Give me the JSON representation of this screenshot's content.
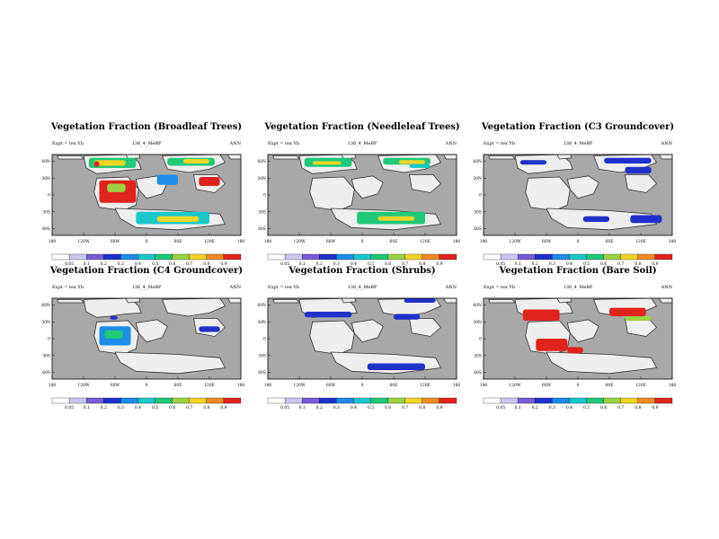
{
  "colors": {
    "ocean": "#a8a8a8",
    "land_empty": "#eeeeee",
    "coast": "#333333",
    "scale": [
      "#ffffff",
      "#c8c8f0",
      "#7a5cd6",
      "#2030c8",
      "#1e8ce8",
      "#19c8c8",
      "#20c878",
      "#9bd241",
      "#f0d428",
      "#f08a23",
      "#e1231e"
    ]
  },
  "chart_data": [
    {
      "type": "heatmap",
      "title": "Vegetation Fraction (Broadleaf Trees)",
      "expt": "Expt = tex Yb",
      "run": "136_4_MeBP",
      "season": "ANN",
      "lon_ticks": [
        "180",
        "120W",
        "60W",
        "0",
        "60E",
        "120E",
        "180"
      ],
      "lat_ticks": [
        "60N",
        "30N",
        "0",
        "30S",
        "60S"
      ],
      "colorbar_ticks": [
        "0.05",
        "0.1",
        "0.2",
        "0.3",
        "0.4",
        "0.5",
        "0.6",
        "0.7",
        "0.8",
        "0.9"
      ],
      "patches": [
        {
          "lon": [
            -110,
            -20
          ],
          "lat": [
            66,
            48
          ],
          "v": 0.5
        },
        {
          "lon": [
            -100,
            -40
          ],
          "lat": [
            62,
            52
          ],
          "v": 0.75
        },
        {
          "lon": [
            -100,
            -90
          ],
          "lat": [
            60,
            50
          ],
          "v": 0.9
        },
        {
          "lon": [
            40,
            130
          ],
          "lat": [
            66,
            52
          ],
          "v": 0.55
        },
        {
          "lon": [
            70,
            120
          ],
          "lat": [
            64,
            56
          ],
          "v": 0.75
        },
        {
          "lon": [
            -90,
            -20
          ],
          "lat": [
            26,
            -14
          ],
          "v": 0.92
        },
        {
          "lon": [
            -75,
            -40
          ],
          "lat": [
            20,
            5
          ],
          "v": 0.6
        },
        {
          "lon": [
            20,
            60
          ],
          "lat": [
            36,
            18
          ],
          "v": 0.3
        },
        {
          "lon": [
            100,
            140
          ],
          "lat": [
            32,
            16
          ],
          "v": 0.92
        },
        {
          "lon": [
            -20,
            120
          ],
          "lat": [
            -30,
            -52
          ],
          "v": 0.45
        },
        {
          "lon": [
            20,
            100
          ],
          "lat": [
            -38,
            -48
          ],
          "v": 0.75
        }
      ]
    },
    {
      "type": "heatmap",
      "title": "Vegetation Fraction (Needleleaf Trees)",
      "expt": "Expt = tex Yb",
      "run": "136_4_MeBP",
      "season": "ANN",
      "lon_ticks": [
        "180",
        "120W",
        "60W",
        "0",
        "60E",
        "120E",
        "180"
      ],
      "lat_ticks": [
        "60N",
        "30N",
        "0",
        "30S",
        "60S"
      ],
      "colorbar_ticks": [
        "0.05",
        "0.1",
        "0.2",
        "0.3",
        "0.4",
        "0.5",
        "0.6",
        "0.7",
        "0.8",
        "0.9"
      ],
      "patches": [
        {
          "lon": [
            -110,
            -20
          ],
          "lat": [
            66,
            50
          ],
          "v": 0.55
        },
        {
          "lon": [
            -95,
            -40
          ],
          "lat": [
            60,
            54
          ],
          "v": 0.7
        },
        {
          "lon": [
            40,
            130
          ],
          "lat": [
            66,
            54
          ],
          "v": 0.5
        },
        {
          "lon": [
            70,
            120
          ],
          "lat": [
            62,
            55
          ],
          "v": 0.7
        },
        {
          "lon": [
            90,
            130
          ],
          "lat": [
            55,
            48
          ],
          "v": 0.4
        },
        {
          "lon": [
            -10,
            120
          ],
          "lat": [
            -30,
            -52
          ],
          "v": 0.5
        },
        {
          "lon": [
            30,
            100
          ],
          "lat": [
            -38,
            -46
          ],
          "v": 0.7
        }
      ]
    },
    {
      "type": "heatmap",
      "title": "Vegetation Fraction (C3 Groundcover)",
      "expt": "Expt = tex Yb",
      "run": "136_4_MeBP",
      "season": "ANN",
      "lon_ticks": [
        "180",
        "120W",
        "60W",
        "0",
        "60E",
        "120E",
        "180"
      ],
      "lat_ticks": [
        "60N",
        "30N",
        "0",
        "30S",
        "60S"
      ],
      "colorbar_ticks": [
        "0.05",
        "0.1",
        "0.2",
        "0.3",
        "0.4",
        "0.5",
        "0.6",
        "0.7",
        "0.8",
        "0.9"
      ],
      "patches": [
        {
          "lon": [
            -110,
            -60
          ],
          "lat": [
            62,
            54
          ],
          "v": 0.2
        },
        {
          "lon": [
            50,
            140
          ],
          "lat": [
            66,
            56
          ],
          "v": 0.2
        },
        {
          "lon": [
            90,
            140
          ],
          "lat": [
            50,
            38
          ],
          "v": 0.2
        },
        {
          "lon": [
            10,
            60
          ],
          "lat": [
            -38,
            -48
          ],
          "v": 0.2
        },
        {
          "lon": [
            100,
            160
          ],
          "lat": [
            -36,
            -50
          ],
          "v": 0.2
        }
      ]
    },
    {
      "type": "heatmap",
      "title": "Vegetation Fraction (C4 Groundcover)",
      "expt": "Expt = tex Yb",
      "run": "136_4_MeBP",
      "season": "ANN",
      "lon_ticks": [
        "180",
        "120W",
        "60W",
        "0",
        "60E",
        "120E",
        "180"
      ],
      "lat_ticks": [
        "60N",
        "30N",
        "0",
        "30S",
        "60S"
      ],
      "colorbar_ticks": [
        "0.05",
        "0.1",
        "0.2",
        "0.3",
        "0.4",
        "0.5",
        "0.6",
        "0.7",
        "0.8",
        "0.9"
      ],
      "patches": [
        {
          "lon": [
            -90,
            -30
          ],
          "lat": [
            22,
            -12
          ],
          "v": 0.3
        },
        {
          "lon": [
            -80,
            -45
          ],
          "lat": [
            15,
            0
          ],
          "v": 0.55
        },
        {
          "lon": [
            -70,
            -55
          ],
          "lat": [
            40,
            34
          ],
          "v": 0.2
        },
        {
          "lon": [
            100,
            140
          ],
          "lat": [
            22,
            12
          ],
          "v": 0.25
        }
      ]
    },
    {
      "type": "heatmap",
      "title": "Vegetation Fraction (Shrubs)",
      "expt": "Expt = tex Yb",
      "run": "136_4_MeBP",
      "season": "ANN",
      "lon_ticks": [
        "180",
        "120W",
        "60W",
        "0",
        "60E",
        "120E",
        "180"
      ],
      "lat_ticks": [
        "60N",
        "30N",
        "0",
        "30S",
        "60S"
      ],
      "colorbar_ticks": [
        "0.05",
        "0.1",
        "0.2",
        "0.3",
        "0.4",
        "0.5",
        "0.6",
        "0.7",
        "0.8",
        "0.9"
      ],
      "patches": [
        {
          "lon": [
            -110,
            -20
          ],
          "lat": [
            48,
            38
          ],
          "v": 0.2
        },
        {
          "lon": [
            80,
            140
          ],
          "lat": [
            72,
            64
          ],
          "v": 0.2
        },
        {
          "lon": [
            60,
            110
          ],
          "lat": [
            44,
            34
          ],
          "v": 0.25
        },
        {
          "lon": [
            10,
            120
          ],
          "lat": [
            -44,
            -56
          ],
          "v": 0.2
        }
      ]
    },
    {
      "type": "heatmap",
      "title": "Vegetation Fraction (Bare Soil)",
      "expt": "Expt = tex Yb",
      "run": "136_4_MeBP",
      "season": "ANN",
      "lon_ticks": [
        "180",
        "120W",
        "60W",
        "0",
        "60E",
        "120E",
        "180"
      ],
      "lat_ticks": [
        "60N",
        "30N",
        "0",
        "30S",
        "60S"
      ],
      "colorbar_ticks": [
        "0.05",
        "0.1",
        "0.2",
        "0.3",
        "0.4",
        "0.5",
        "0.6",
        "0.7",
        "0.8",
        "0.9"
      ],
      "patches": [
        {
          "lon": [
            -105,
            -35
          ],
          "lat": [
            52,
            32
          ],
          "v": 0.95
        },
        {
          "lon": [
            -80,
            -20
          ],
          "lat": [
            0,
            -22
          ],
          "v": 0.95
        },
        {
          "lon": [
            -20,
            10
          ],
          "lat": [
            -15,
            -26
          ],
          "v": 0.95
        },
        {
          "lon": [
            60,
            130
          ],
          "lat": [
            55,
            40
          ],
          "v": 0.95
        },
        {
          "lon": [
            90,
            140
          ],
          "lat": [
            40,
            32
          ],
          "v": 0.6
        }
      ]
    }
  ]
}
